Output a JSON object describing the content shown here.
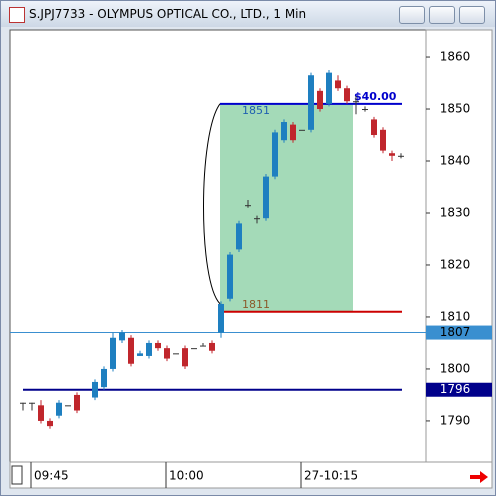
{
  "chart_data": {
    "type": "candlestick",
    "title": "S.JPJ7733 - OLYMPUS OPTICAL CO., LTD., 1 Min",
    "categories": [
      null,
      "09:45",
      null,
      null,
      null,
      null,
      null,
      null,
      null,
      null,
      null,
      null,
      null,
      null,
      null,
      null,
      "10:00",
      null,
      null,
      null,
      null,
      null,
      null,
      null,
      null,
      null,
      null,
      null,
      null,
      null,
      null,
      "27-10:15",
      null,
      null,
      null,
      null,
      null,
      null,
      null,
      null,
      null,
      null,
      null
    ],
    "open": [
      1793.5,
      1793.5,
      1793,
      1790,
      1791,
      1793,
      1795,
      null,
      1794.5,
      1796.5,
      1800,
      1805.5,
      1806,
      1802.5,
      1802.5,
      1805,
      1804,
      1803,
      1804,
      1804,
      1804.5,
      1805,
      1807,
      1813.5,
      1823,
      1831.5,
      1829,
      1829,
      1837,
      1844,
      1847,
      1846,
      1846,
      1853.5,
      1851,
      1855.5,
      1854,
      1851.5,
      1850,
      1848,
      1846,
      1841.5,
      1841
    ],
    "high": [
      1793.5,
      1793.5,
      1794,
      1790.5,
      1794,
      1793,
      1795.5,
      null,
      1798,
      1800.5,
      1807,
      1807.5,
      1806.5,
      1803.5,
      1805.5,
      1805.5,
      1804.5,
      1803,
      1804.5,
      1804,
      1805,
      1805.5,
      1813,
      1822.5,
      1828.5,
      1832.5,
      1829.5,
      1837.5,
      1846,
      1848,
      1847.5,
      1846,
      1857,
      1854,
      1857.5,
      1856.5,
      1854.5,
      1852.5,
      1850.5,
      1848.5,
      1846.5,
      1842,
      1841.5
    ],
    "low": [
      1792,
      1792,
      1789.5,
      1788.5,
      1790.5,
      1793,
      1791.5,
      null,
      1794,
      1796,
      1799.5,
      1805,
      1800.5,
      1802.5,
      1802,
      1803.5,
      1801.5,
      1803,
      1800,
      1804,
      1804.5,
      1803,
      1806,
      1813,
      1822.5,
      1831,
      1828,
      1828.5,
      1836.5,
      1843.5,
      1843.5,
      1846,
      1845.5,
      1849.5,
      1850.5,
      1853.5,
      1851,
      1849,
      1849.5,
      1844.5,
      1841.5,
      1840,
      1840.5
    ],
    "close": [
      1793.5,
      1793.5,
      1790,
      1789,
      1793.5,
      1793,
      1792,
      null,
      1797.5,
      1800,
      1806,
      1807,
      1801,
      1803,
      1805,
      1804,
      1802,
      1803,
      1800.5,
      1804,
      1804.5,
      1803.5,
      1812.5,
      1822,
      1828,
      1831.5,
      1829,
      1837,
      1845.5,
      1847.5,
      1844,
      1846,
      1856.5,
      1850,
      1857,
      1854,
      1851.5,
      1851.5,
      1850,
      1845,
      1842,
      1841,
      1841
    ],
    "up_color": "#1e7fc0",
    "down_color": "#c0262c",
    "ylim": [
      1782.1,
      1865.2
    ],
    "yticks": [
      1790,
      1800,
      1810,
      1820,
      1830,
      1840,
      1850,
      1860
    ],
    "hlines": [
      {
        "value": 1807,
        "color": "#3a8fd0"
      },
      {
        "value": 1796,
        "color": "#00008b"
      }
    ],
    "measure": {
      "low": 1811,
      "high": 1851,
      "label": "$40.00",
      "low_color": "#cc0000",
      "high_color": "#0000cc",
      "fill": "#9fd8b4"
    }
  }
}
